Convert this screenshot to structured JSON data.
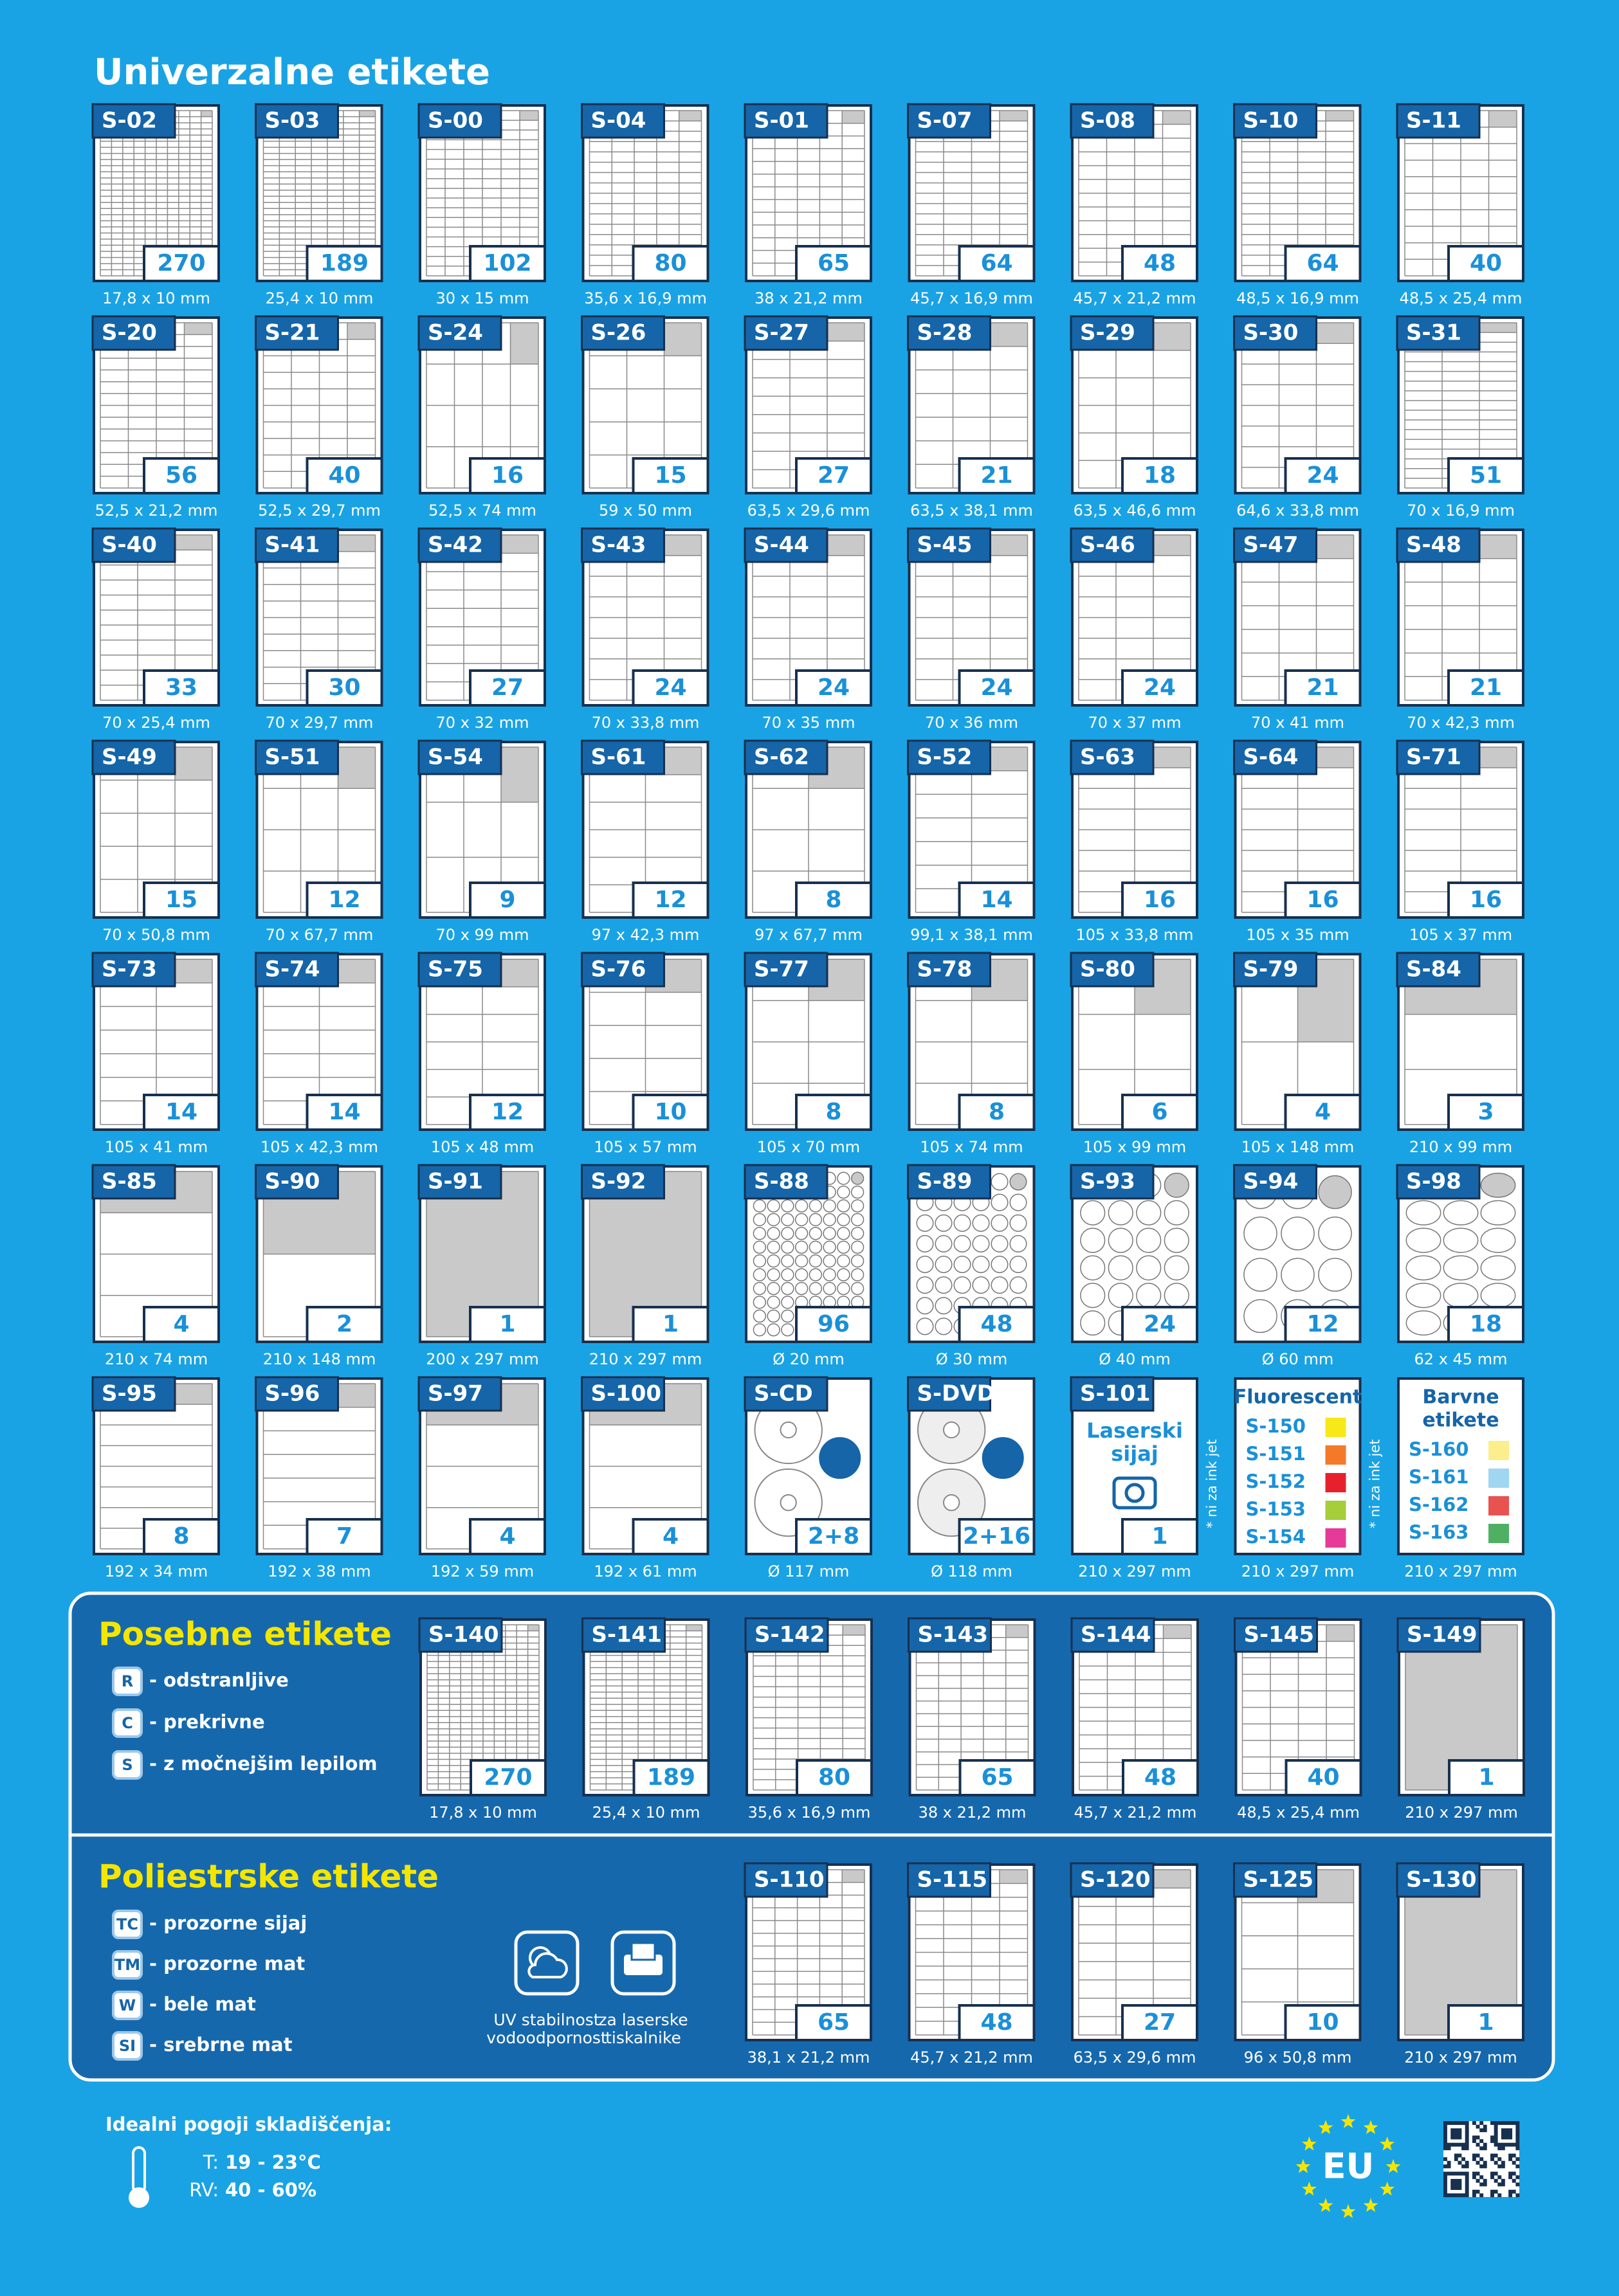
{
  "header": {
    "title": "Univerzalne etikete"
  },
  "items": [
    {
      "code": "S-02",
      "count": 270,
      "size": "17,8 x 10 mm"
    },
    {
      "code": "S-03",
      "count": 189,
      "size": "25,4 x 10 mm"
    },
    {
      "code": "S-00",
      "count": 102,
      "size": "30 x 15 mm"
    },
    {
      "code": "S-04",
      "count": 80,
      "size": "35,6 x 16,9 mm"
    },
    {
      "code": "S-01",
      "count": 65,
      "size": "38 x 21,2 mm"
    },
    {
      "code": "S-07",
      "count": 64,
      "size": "45,7 x 16,9 mm"
    },
    {
      "code": "S-08",
      "count": 48,
      "size": "45,7 x 21,2 mm"
    },
    {
      "code": "S-10",
      "count": 64,
      "size": "48,5 x 16,9 mm"
    },
    {
      "code": "S-11",
      "count": 40,
      "size": "48,5 x 25,4 mm"
    },
    {
      "code": "S-20",
      "count": 56,
      "size": "52,5 x 21,2 mm"
    },
    {
      "code": "S-21",
      "count": 40,
      "size": "52,5 x 29,7 mm"
    },
    {
      "code": "S-24",
      "count": 16,
      "size": "52,5 x 74 mm"
    },
    {
      "code": "S-26",
      "count": 15,
      "size": "59 x 50 mm"
    },
    {
      "code": "S-27",
      "count": 27,
      "size": "63,5 x 29,6 mm"
    },
    {
      "code": "S-28",
      "count": 21,
      "size": "63,5 x 38,1 mm"
    },
    {
      "code": "S-29",
      "count": 18,
      "size": "63,5 x 46,6 mm"
    },
    {
      "code": "S-30",
      "count": 24,
      "size": "64,6 x 33,8 mm"
    },
    {
      "code": "S-31",
      "count": 51,
      "size": "70 x 16,9 mm"
    },
    {
      "code": "S-40",
      "count": 33,
      "size": "70 x 25,4 mm"
    },
    {
      "code": "S-41",
      "count": 30,
      "size": "70 x 29,7 mm"
    },
    {
      "code": "S-42",
      "count": 27,
      "size": "70 x 32 mm"
    },
    {
      "code": "S-43",
      "count": 24,
      "size": "70 x 33,8 mm"
    },
    {
      "code": "S-44",
      "count": 24,
      "size": "70 x 35 mm"
    },
    {
      "code": "S-45",
      "count": 24,
      "size": "70 x 36 mm"
    },
    {
      "code": "S-46",
      "count": 24,
      "size": "70 x 37 mm"
    },
    {
      "code": "S-47",
      "count": 21,
      "size": "70 x 41 mm"
    },
    {
      "code": "S-48",
      "count": 21,
      "size": "70 x 42,3 mm"
    },
    {
      "code": "S-49",
      "count": 15,
      "size": "70 x 50,8 mm"
    },
    {
      "code": "S-51",
      "count": 12,
      "size": "70 x 67,7 mm"
    },
    {
      "code": "S-54",
      "count": 9,
      "size": "70 x 99 mm"
    },
    {
      "code": "S-61",
      "count": 12,
      "size": "97 x 42,3 mm"
    },
    {
      "code": "S-62",
      "count": 8,
      "size": "97 x 67,7 mm"
    },
    {
      "code": "S-52",
      "count": 14,
      "size": "99,1 x 38,1 mm"
    },
    {
      "code": "S-63",
      "count": 16,
      "size": "105 x 33,8 mm"
    },
    {
      "code": "S-64",
      "count": 16,
      "size": "105 x 35 mm"
    },
    {
      "code": "S-71",
      "count": 16,
      "size": "105 x 37 mm"
    },
    {
      "code": "S-73",
      "count": 14,
      "size": "105 x 41 mm"
    },
    {
      "code": "S-74",
      "count": 14,
      "size": "105 x 42,3 mm"
    },
    {
      "code": "S-75",
      "count": 12,
      "size": "105 x 48 mm"
    },
    {
      "code": "S-76",
      "count": 10,
      "size": "105 x 57 mm"
    },
    {
      "code": "S-77",
      "count": 8,
      "size": "105 x 70 mm"
    },
    {
      "code": "S-78",
      "count": 8,
      "size": "105 x 74 mm"
    },
    {
      "code": "S-80",
      "count": 6,
      "size": "105 x 99 mm"
    },
    {
      "code": "S-79",
      "count": 4,
      "size": "105 x 148 mm"
    },
    {
      "code": "S-84",
      "count": 3,
      "size": "210 x 99 mm"
    },
    {
      "code": "S-85",
      "count": 4,
      "size": "210 x 74 mm"
    },
    {
      "code": "S-90",
      "count": 2,
      "size": "210 x 148 mm"
    },
    {
      "code": "S-91",
      "count": 1,
      "size": "200 x 297 mm"
    },
    {
      "code": "S-92",
      "count": 1,
      "size": "210 x 297 mm"
    },
    {
      "code": "S-88",
      "count": 96,
      "size": "Ø 20 mm"
    },
    {
      "code": "S-89",
      "count": 48,
      "size": "Ø 30 mm"
    },
    {
      "code": "S-93",
      "count": 24,
      "size": "Ø 40 mm"
    },
    {
      "code": "S-94",
      "count": 12,
      "size": "Ø 60 mm"
    },
    {
      "code": "S-98",
      "count": 18,
      "size": "62 x 45 mm"
    },
    {
      "code": "S-95",
      "count": 8,
      "size": "192 x 34 mm"
    },
    {
      "code": "S-96",
      "count": 7,
      "size": "192 x 38 mm"
    },
    {
      "code": "S-97",
      "count": 4,
      "size": "192 x 59 mm"
    },
    {
      "code": "S-100",
      "count": 4,
      "size": "192 x 61 mm"
    },
    {
      "code": "S-CD",
      "count": "2+8",
      "size": "Ø 117 mm"
    },
    {
      "code": "S-DVD",
      "count": "2+16",
      "size": "Ø 118 mm"
    },
    {
      "code": "S-101",
      "label": [
        "Laserski",
        "sijaj"
      ],
      "count": 1,
      "size": "210 x 297 mm",
      "note": "* ni za ink jet"
    },
    {
      "title": [
        "Fluorescent"
      ],
      "variants": [
        {
          "code": "S-150",
          "color": "#f7e81a"
        },
        {
          "code": "S-151",
          "color": "#f47a2a"
        },
        {
          "code": "S-152",
          "color": "#e8202e"
        },
        {
          "code": "S-153",
          "color": "#a6cd3a"
        },
        {
          "code": "S-154",
          "color": "#e63a98"
        }
      ],
      "size": "210 x 297 mm",
      "note": "* ni za ink jet"
    },
    {
      "title": [
        "Barvne",
        "etikete"
      ],
      "variants": [
        {
          "code": "S-160",
          "color": "#fbee8c"
        },
        {
          "code": "S-161",
          "color": "#9fd6f2"
        },
        {
          "code": "S-162",
          "color": "#e8534f"
        },
        {
          "code": "S-163",
          "color": "#4fb064"
        }
      ],
      "size": "210 x 297 mm"
    }
  ],
  "special": {
    "title": "Posebne etikete",
    "legend": [
      {
        "key": "R",
        "text": "- odstranljive"
      },
      {
        "key": "C",
        "text": "- prekrivne"
      },
      {
        "key": "S",
        "text": "- z močnejšim lepilom"
      }
    ],
    "items": [
      {
        "code": "S-140",
        "count": 270,
        "size": "17,8 x 10 mm"
      },
      {
        "code": "S-141",
        "count": 189,
        "size": "25,4 x 10 mm"
      },
      {
        "code": "S-142",
        "count": 80,
        "size": "35,6 x 16,9 mm"
      },
      {
        "code": "S-143",
        "count": 65,
        "size": "38 x 21,2 mm"
      },
      {
        "code": "S-144",
        "count": 48,
        "size": "45,7 x 21,2 mm"
      },
      {
        "code": "S-145",
        "count": 40,
        "size": "48,5 x 25,4 mm"
      },
      {
        "code": "S-149",
        "count": 1,
        "size": "210 x 297 mm"
      }
    ]
  },
  "polyester": {
    "title": "Poliestrske etikete",
    "legend": [
      {
        "key": "TC",
        "text": "- prozorne sijaj"
      },
      {
        "key": "TM",
        "text": "- prozorne mat"
      },
      {
        "key": "W",
        "text": "- bele mat"
      },
      {
        "key": "SI",
        "text": "- srebrne mat"
      }
    ],
    "features": [
      {
        "text": [
          "UV stabilnost",
          "vodoodpornost"
        ]
      },
      {
        "text": [
          "za laserske",
          "tiskalnike"
        ]
      }
    ],
    "items": [
      {
        "code": "S-110",
        "count": 65,
        "size": "38,1 x 21,2 mm"
      },
      {
        "code": "S-115",
        "count": 48,
        "size": "45,7 x 21,2 mm"
      },
      {
        "code": "S-120",
        "count": 27,
        "size": "63,5 x 29,6 mm"
      },
      {
        "code": "S-125",
        "count": 10,
        "size": "96 x 50,8 mm"
      },
      {
        "code": "S-130",
        "count": 1,
        "size": "210 x 297 mm"
      }
    ]
  },
  "footer": {
    "storage_title": "Idealni pogoji skladiščenja:",
    "temperature": {
      "label": "T:",
      "value": "19 - 23°C"
    },
    "humidity": {
      "label": "RV:",
      "value": "40 - 60%"
    },
    "eu": "EU"
  }
}
